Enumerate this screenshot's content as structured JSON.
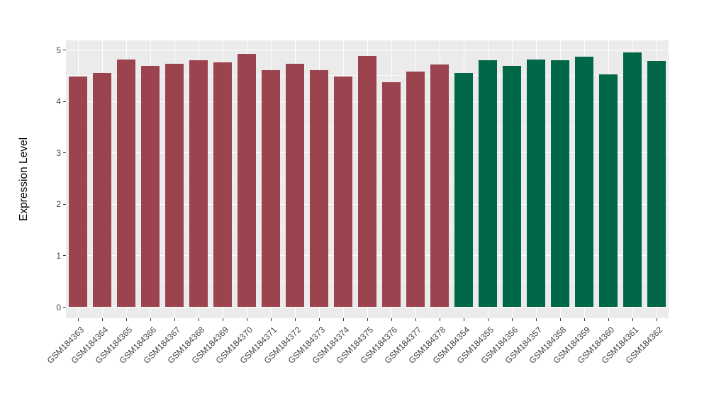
{
  "figure": {
    "background_color": "#FFFFFF",
    "panel_background_color": "#EBEBEB",
    "gridline_color": "#FFFFFF",
    "axis_text_color": "#404040",
    "axis_title_color": "#000000",
    "tick_mark_color": "#333333",
    "title": "",
    "legend": "none"
  },
  "chart_data": {
    "type": "bar",
    "title": "",
    "xlabel": "",
    "ylabel": "Expression Level",
    "ylim": [
      -0.22,
      5.18
    ],
    "yticks": [
      0,
      1,
      2,
      3,
      4,
      5
    ],
    "minor_yticks": [
      0.5,
      1.5,
      2.5,
      3.5,
      4.5
    ],
    "grid": "white major and minor horizontal gridlines plus vertical gridlines at category centers on grey panel",
    "legend_position": "none",
    "bar_width_fraction": 0.74,
    "categories": [
      "GSM184363",
      "GSM184364",
      "GSM184365",
      "GSM184366",
      "GSM184367",
      "GSM184368",
      "GSM184369",
      "GSM184370",
      "GSM184371",
      "GSM184372",
      "GSM184373",
      "GSM184374",
      "GSM184375",
      "GSM184376",
      "GSM184377",
      "GSM184378",
      "GSM184354",
      "GSM184355",
      "GSM184356",
      "GSM184357",
      "GSM184358",
      "GSM184359",
      "GSM184360",
      "GSM184361",
      "GSM184362"
    ],
    "series": [
      {
        "name": "GSM184363-GSM184378",
        "color": "#9C4350",
        "categories": [
          "GSM184363",
          "GSM184364",
          "GSM184365",
          "GSM184366",
          "GSM184367",
          "GSM184368",
          "GSM184369",
          "GSM184370",
          "GSM184371",
          "GSM184372",
          "GSM184373",
          "GSM184374",
          "GSM184375",
          "GSM184376",
          "GSM184377",
          "GSM184378"
        ],
        "values": [
          4.48,
          4.55,
          4.81,
          4.68,
          4.73,
          4.8,
          4.75,
          4.92,
          4.6,
          4.73,
          4.6,
          4.47,
          4.88,
          4.37,
          4.58,
          4.71
        ]
      },
      {
        "name": "GSM184354-GSM184362",
        "color": "#006748",
        "categories": [
          "GSM184354",
          "GSM184355",
          "GSM184356",
          "GSM184357",
          "GSM184358",
          "GSM184359",
          "GSM184360",
          "GSM184361",
          "GSM184362"
        ],
        "values": [
          4.54,
          4.8,
          4.69,
          4.81,
          4.8,
          4.86,
          4.52,
          4.94,
          4.78
        ]
      }
    ]
  }
}
